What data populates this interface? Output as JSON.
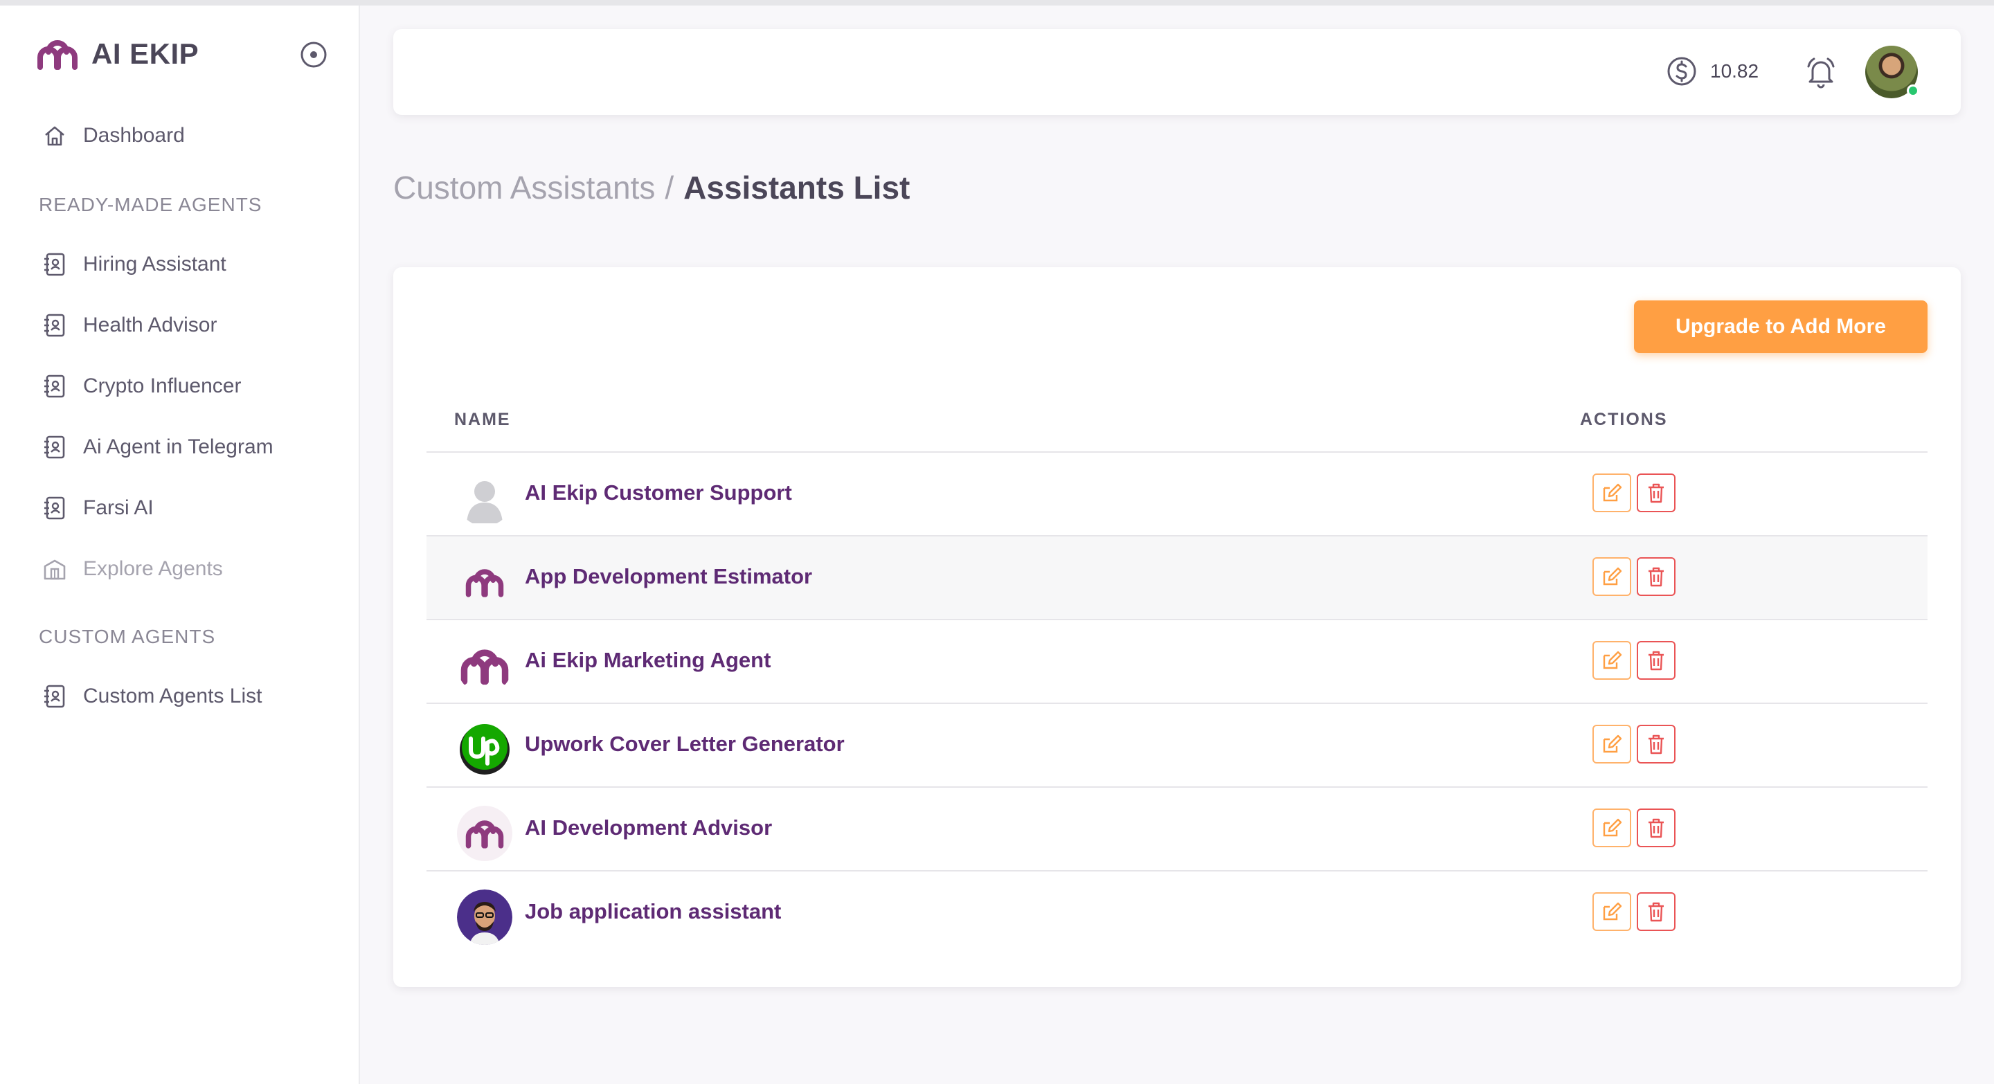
{
  "app": {
    "brand_name": "AI EKIP"
  },
  "sidebar": {
    "dashboard_label": "Dashboard",
    "ready_made_heading": "READY-MADE AGENTS",
    "ready_made_items": [
      {
        "label": "Hiring Assistant",
        "icon": "contact-book-icon"
      },
      {
        "label": "Health Advisor",
        "icon": "contact-book-icon"
      },
      {
        "label": "Crypto Influencer",
        "icon": "contact-book-icon"
      },
      {
        "label": "Ai Agent in Telegram",
        "icon": "contact-book-icon"
      },
      {
        "label": "Farsi AI",
        "icon": "contact-book-icon"
      }
    ],
    "explore_label": "Explore Agents",
    "custom_heading": "CUSTOM AGENTS",
    "custom_items": [
      {
        "label": "Custom Agents List",
        "icon": "contact-book-icon"
      }
    ]
  },
  "header": {
    "credits_amount": "10.82",
    "icons": [
      "dollar-coin-icon",
      "bell-icon",
      "user-avatar"
    ]
  },
  "breadcrumb": {
    "parent": "Custom Assistants",
    "separator": "/",
    "current": "Assistants List"
  },
  "card": {
    "upgrade_button": "Upgrade to Add More",
    "columns": {
      "name": "NAME",
      "actions": "ACTIONS"
    },
    "assistants": [
      {
        "name": "AI Ekip Customer Support",
        "avatar": "default-person"
      },
      {
        "name": "App Development Estimator",
        "avatar": "aiekip-logo"
      },
      {
        "name": "Ai Ekip Marketing Agent",
        "avatar": "aiekip-logo"
      },
      {
        "name": "Upwork Cover Letter Generator",
        "avatar": "upwork-logo"
      },
      {
        "name": "AI Development Advisor",
        "avatar": "aiekip-logo"
      },
      {
        "name": "Job application assistant",
        "avatar": "person-photo"
      }
    ]
  },
  "colors": {
    "brand_purple": "#8e3a7e",
    "name_link": "#5e2a74",
    "upgrade_orange": "#ff9f43",
    "delete_red": "#ea5455",
    "online_green": "#28c76f"
  }
}
